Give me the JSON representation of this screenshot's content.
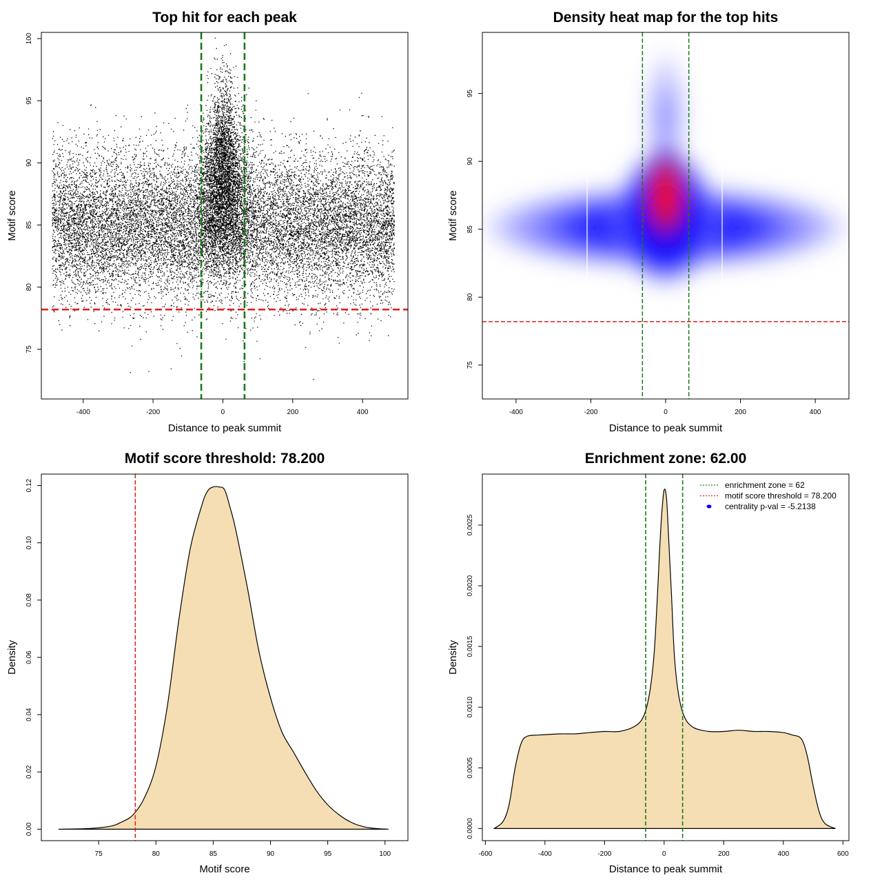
{
  "chart_data": [
    {
      "type": "scatter",
      "title": "Top hit for each peak",
      "xlabel": "Distance to peak summit",
      "ylabel": "Motif score",
      "xlim": [
        -520,
        530
      ],
      "ylim": [
        71,
        100.5
      ],
      "xticks": [
        -400,
        -200,
        0,
        200,
        400
      ],
      "yticks": [
        75,
        80,
        85,
        90,
        95,
        100
      ],
      "vlines": [
        -62,
        62
      ],
      "hline": 78.2,
      "vline_color": "#1a7a1a",
      "hline_color": "#e0201e",
      "grid": false
    },
    {
      "type": "heatmap",
      "title": "Density heat map for the top hits",
      "xlabel": "Distance to peak summit",
      "ylabel": "Motif score",
      "xlim": [
        -490,
        490
      ],
      "ylim": [
        72.5,
        99.5
      ],
      "xticks": [
        -400,
        -200,
        0,
        200,
        400
      ],
      "yticks": [
        75,
        80,
        85,
        90,
        95
      ],
      "vlines": [
        -62,
        62
      ],
      "hline": 78.2,
      "colors": [
        "#ffffff",
        "#0000ff",
        "#ff0000"
      ],
      "grid": false
    },
    {
      "type": "area",
      "title": "Motif score threshold: 78.200",
      "xlabel": "Motif score",
      "ylabel": "Density",
      "xlim": [
        70,
        102
      ],
      "ylim": [
        -0.004,
        0.124
      ],
      "xticks": [
        75,
        80,
        85,
        90,
        95,
        100
      ],
      "yticks": [
        0.0,
        0.02,
        0.04,
        0.06,
        0.08,
        0.1,
        0.12
      ],
      "ytick_labels": [
        "0.00",
        "0.02",
        "0.04",
        "0.06",
        "0.08",
        "0.10",
        "0.12"
      ],
      "vline": 78.2,
      "fill": "#f5deb3",
      "x": [
        71.5,
        74,
        76,
        77,
        78,
        79,
        80,
        81,
        82,
        83,
        84,
        84.5,
        85,
        85.5,
        86,
        86.5,
        87,
        88,
        89,
        90,
        91,
        92,
        93,
        94,
        95,
        96,
        97,
        98,
        99,
        100.3
      ],
      "y": [
        0,
        0.0002,
        0.001,
        0.0025,
        0.005,
        0.011,
        0.022,
        0.043,
        0.073,
        0.098,
        0.113,
        0.118,
        0.1195,
        0.1195,
        0.1185,
        0.112,
        0.104,
        0.084,
        0.062,
        0.046,
        0.034,
        0.027,
        0.02,
        0.0135,
        0.0085,
        0.005,
        0.0025,
        0.001,
        0.0003,
        0
      ]
    },
    {
      "type": "area",
      "title": "Enrichment zone: 62.00",
      "xlabel": "Distance to peak summit",
      "ylabel": "Density",
      "xlim": [
        -610,
        620
      ],
      "ylim": [
        -0.0001,
        0.00292
      ],
      "xticks": [
        -600,
        -400,
        -200,
        0,
        200,
        400,
        600
      ],
      "yticks": [
        0.0,
        0.0005,
        0.001,
        0.0015,
        0.002,
        0.0025
      ],
      "ytick_labels": [
        "0.0000",
        "0.0005",
        "0.0010",
        "0.0015",
        "0.0020",
        "0.0025"
      ],
      "vlines": [
        -62,
        62
      ],
      "fill": "#f5deb3",
      "x": [
        -570,
        -540,
        -520,
        -500,
        -480,
        -460,
        -420,
        -350,
        -300,
        -250,
        -200,
        -150,
        -100,
        -70,
        -50,
        -35,
        -25,
        -15,
        -8,
        0,
        8,
        15,
        25,
        35,
        50,
        70,
        100,
        150,
        200,
        250,
        300,
        350,
        400,
        430,
        460,
        480,
        500,
        520,
        540,
        575
      ],
      "y": [
        0,
        6e-05,
        0.0002,
        0.0005,
        0.0007,
        0.00076,
        0.00077,
        0.00078,
        0.00078,
        0.00079,
        0.0008,
        0.0008,
        0.00084,
        0.00092,
        0.0011,
        0.0014,
        0.0018,
        0.0023,
        0.0026,
        0.00279,
        0.00272,
        0.0024,
        0.0019,
        0.0014,
        0.00108,
        0.00091,
        0.00083,
        0.0008,
        0.0008,
        0.00081,
        0.0008,
        0.0008,
        0.00079,
        0.00077,
        0.00074,
        0.0006,
        0.00035,
        0.00014,
        4e-05,
        0
      ],
      "legend": {
        "placement": "top-right",
        "entries": [
          {
            "label": "enrichment zone = 62",
            "color": "#1a7a1a",
            "style": "dotted-line"
          },
          {
            "label": "motif score threshold = 78.200",
            "color": "#e0201e",
            "style": "dotted-line"
          },
          {
            "label": "centrality p-val = -5.2138",
            "color": "#0000ff",
            "style": "point"
          }
        ]
      }
    }
  ]
}
